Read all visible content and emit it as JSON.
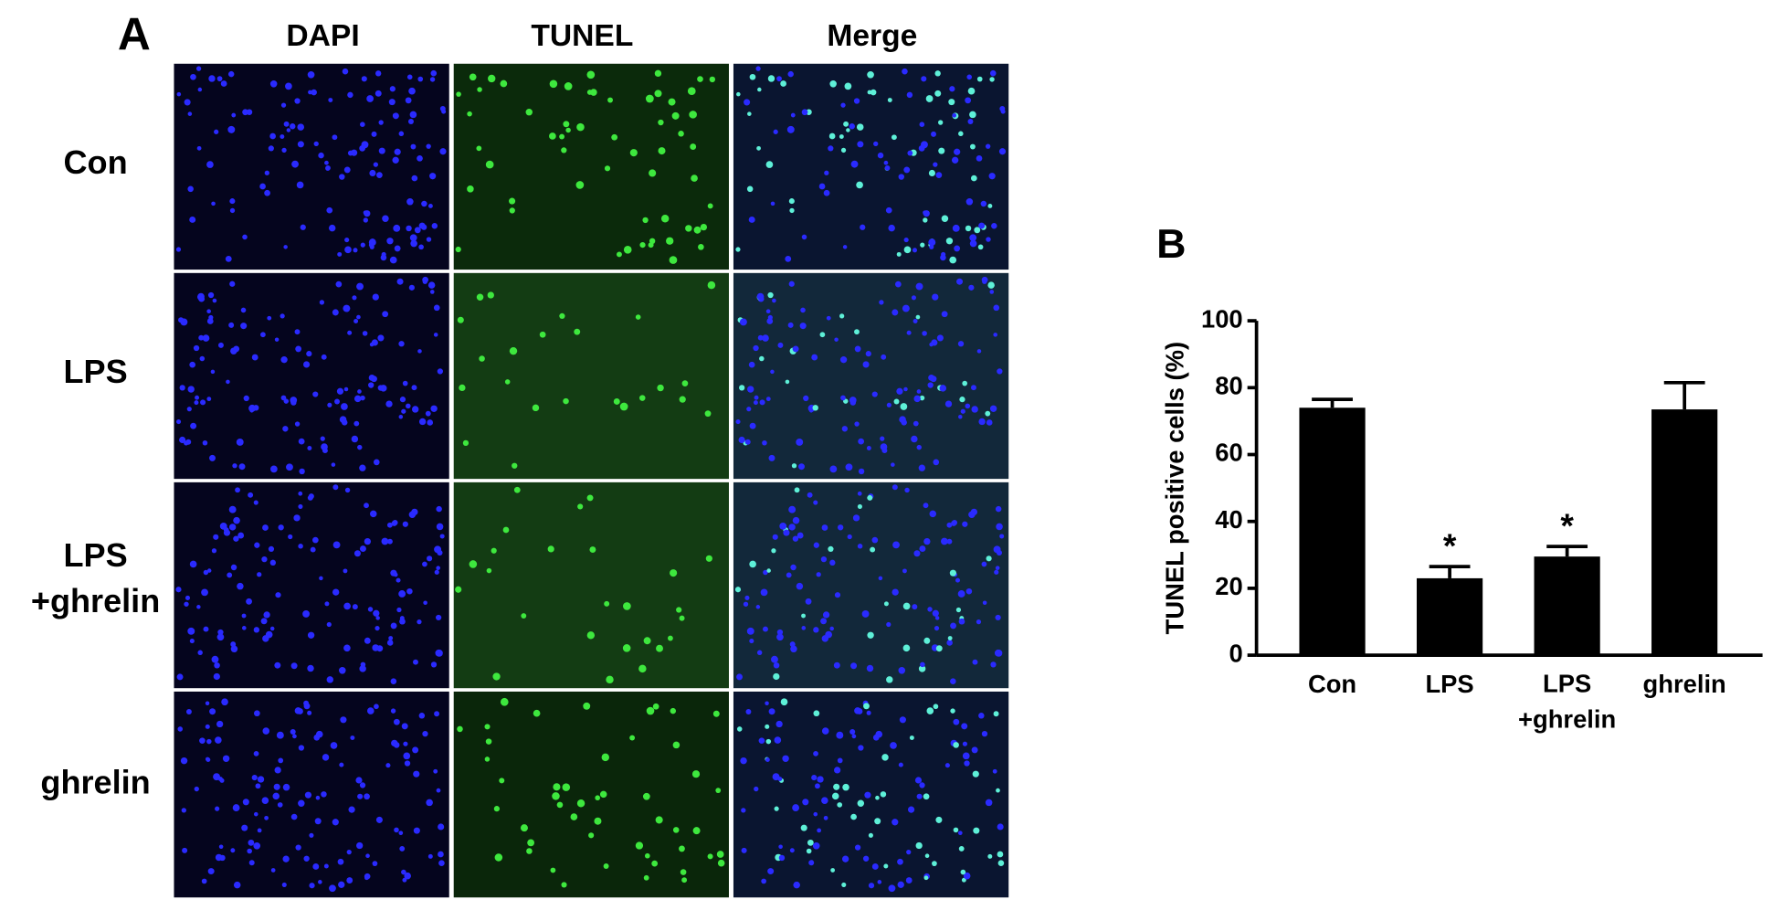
{
  "panel_a": {
    "label": "A",
    "columns": [
      "DAPI",
      "TUNEL",
      "Merge"
    ],
    "rows": [
      "Con",
      "LPS",
      "LPS\n+ghrelin",
      "ghrelin"
    ]
  },
  "chart_data": {
    "type": "bar",
    "panel_label": "B",
    "y_label": "TUNEL positive cells (%)",
    "categories": [
      "Con",
      "LPS",
      "LPS\n+ghrelin",
      "ghrelin"
    ],
    "values": [
      74,
      23,
      29.5,
      73.5
    ],
    "errors": [
      2.5,
      3.5,
      3,
      8
    ],
    "markers": [
      null,
      "*",
      "*",
      null
    ],
    "color": "#000000",
    "ylim": [
      0,
      100
    ],
    "yticks": [
      0,
      20,
      40,
      60,
      80,
      100
    ]
  }
}
